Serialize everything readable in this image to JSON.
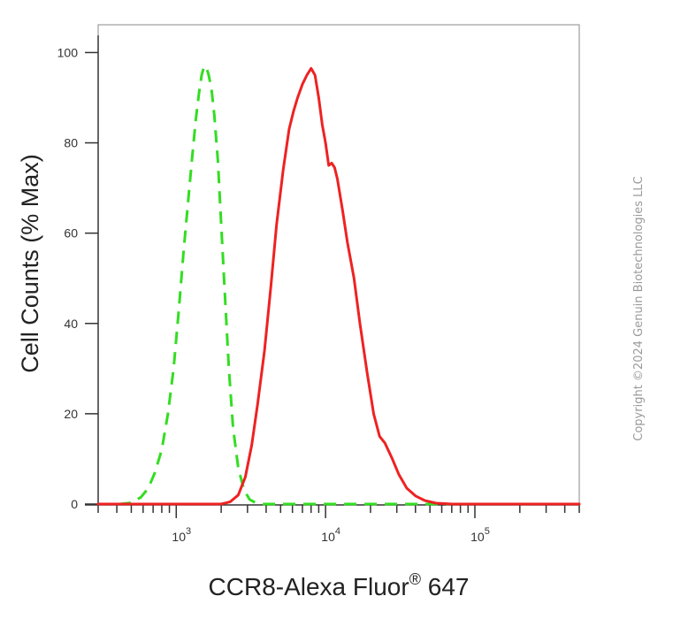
{
  "chart_data": {
    "type": "line",
    "title": "",
    "xlabel": "CCR8-Alexa Fluor",
    "xlabel_superscript": "®",
    "xlabel_suffix": " 647",
    "ylabel": "Cell Counts (% Max)",
    "xscale": "log",
    "xlim": [
      300,
      500000
    ],
    "ylim": [
      0,
      104
    ],
    "yticks": [
      0,
      20,
      40,
      60,
      80,
      100
    ],
    "xticks": [
      {
        "value": 1000,
        "base": "10",
        "exp": "3"
      },
      {
        "value": 10000,
        "base": "10",
        "exp": "4"
      },
      {
        "value": 100000,
        "base": "10",
        "exp": "5"
      }
    ],
    "grid": false,
    "series": [
      {
        "color": "#33dd22",
        "style": "dashed",
        "x": [
          300,
          420,
          500,
          580,
          650,
          720,
          800,
          880,
          960,
          1040,
          1120,
          1200,
          1280,
          1350,
          1420,
          1480,
          1540,
          1600,
          1650,
          1720,
          1800,
          1900,
          2000,
          2120,
          2250,
          2400,
          2600,
          2850,
          3100,
          3400,
          3800,
          5000,
          10000,
          50000,
          100000,
          500000
        ],
        "y": [
          0,
          0,
          0.3,
          1.5,
          3.5,
          7,
          12,
          20,
          30,
          43,
          56,
          67,
          77,
          85,
          91,
          95,
          97,
          96.5,
          95,
          92,
          86,
          76,
          62,
          46,
          30,
          17,
          8,
          3,
          1,
          0.3,
          0,
          0,
          0,
          0,
          0,
          0
        ]
      },
      {
        "color": "#ee2222",
        "style": "solid",
        "x": [
          300,
          1000,
          2000,
          2300,
          2600,
          2900,
          3200,
          3500,
          3900,
          4300,
          4700,
          5200,
          5700,
          6100,
          6500,
          7000,
          7500,
          8000,
          8500,
          9000,
          9500,
          10000,
          10500,
          11000,
          11500,
          12000,
          13000,
          14000,
          15500,
          17000,
          19000,
          21000,
          23000,
          25000,
          28000,
          31000,
          35000,
          40000,
          46000,
          55000,
          70000,
          100000,
          500000
        ],
        "y": [
          0,
          0,
          0,
          0.5,
          2,
          6,
          13,
          22,
          34,
          48,
          62,
          74,
          83,
          87,
          90,
          93,
          95,
          96.5,
          95,
          90,
          84,
          80,
          75,
          75.5,
          74.5,
          72,
          65,
          58,
          50,
          40,
          29,
          20,
          15,
          13.5,
          10,
          6.5,
          3.5,
          1.8,
          0.8,
          0.2,
          0,
          0,
          0
        ]
      }
    ]
  },
  "copyright": "Copyright ©2024 Genuin Biotechnologies LLC"
}
